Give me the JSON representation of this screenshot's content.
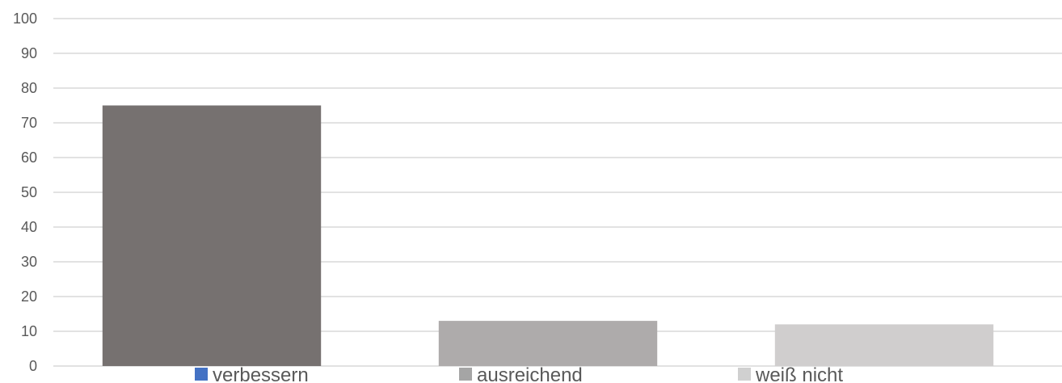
{
  "chart_data": {
    "type": "bar",
    "categories": [
      "verbessern",
      "ausreichend",
      "weiß nicht"
    ],
    "values": [
      75,
      13,
      12
    ],
    "ylim": [
      0,
      100
    ],
    "yticks": [
      0,
      10,
      20,
      30,
      40,
      50,
      60,
      70,
      80,
      90,
      100
    ],
    "grid": true,
    "legend": {
      "position": "bottom",
      "entries": [
        {
          "label": "verbessern",
          "color": "#4472C4"
        },
        {
          "label": "ausreichend",
          "color": "#A5A5A5"
        },
        {
          "label": "weiß nicht",
          "color": "#D0D0D0"
        }
      ]
    },
    "bar_colors": [
      "#767170",
      "#AEABAB",
      "#D0CECE"
    ],
    "gridline_color": "#D9D9D9"
  }
}
